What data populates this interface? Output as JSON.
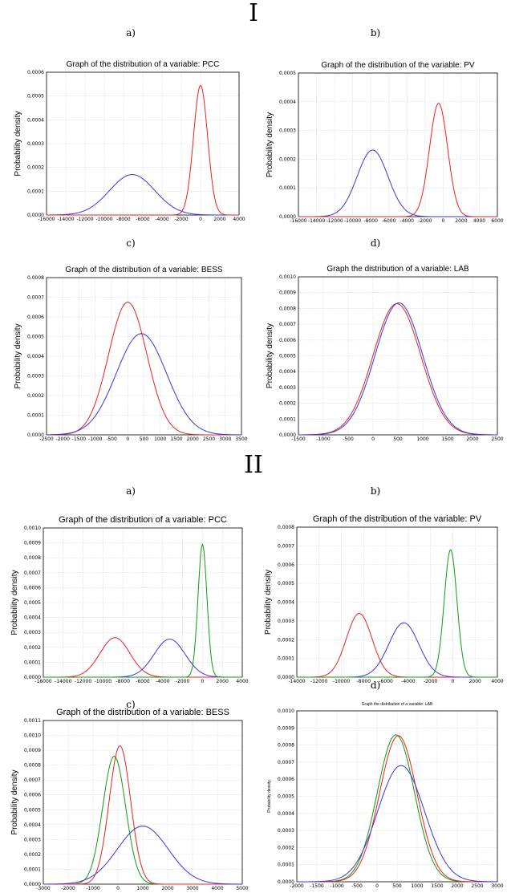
{
  "sections": [
    {
      "label": "I",
      "panels": [
        {
          "label": "a)"
        },
        {
          "label": "b)"
        },
        {
          "label": "c)"
        },
        {
          "label": "d)"
        }
      ]
    },
    {
      "label": "II",
      "panels": [
        {
          "label": "a)"
        },
        {
          "label": "b)"
        },
        {
          "label": "c)"
        },
        {
          "label": "d)"
        }
      ]
    }
  ],
  "colors": {
    "red": "#e8221e",
    "blue": "#3a35e0",
    "green": "#119911"
  },
  "chart_data": [
    {
      "type": "line",
      "title": "Graph of the distribution of a variable: PCC",
      "ylabel": "Probability density",
      "xlim": [
        -16000,
        4000
      ],
      "xticks": [
        -16000,
        -14000,
        -12000,
        -10000,
        -8000,
        -6000,
        -4000,
        -2000,
        0,
        2000,
        4000
      ],
      "xtick_labels": [
        "-16000",
        "-14000",
        "-12000",
        "-10000",
        "-8000",
        "-6000",
        "-4000",
        "-2000",
        "0",
        "2000",
        "4000"
      ],
      "ylim": [
        0,
        0.0006
      ],
      "yticks": [
        0,
        0.0001,
        0.0002,
        0.0003,
        0.0004,
        0.0005,
        0.0006
      ],
      "ytick_labels": [
        "0,0000",
        "0,0001",
        "0,0002",
        "0,0003",
        "0,0004",
        "0,0005",
        "0,0006"
      ],
      "series": [
        {
          "color": "blue",
          "mean": -7100,
          "peak": 0.00017,
          "sd": 2350
        },
        {
          "color": "red",
          "mean": 0,
          "peak": 0.000545,
          "sd": 730
        }
      ]
    },
    {
      "type": "line",
      "title": "Graph of the distribution of the variable: PV",
      "ylabel": "Probability density",
      "xlim": [
        -16000,
        6000
      ],
      "xticks": [
        -16000,
        -14000,
        -12000,
        -10000,
        -8000,
        -6000,
        -4000,
        -2000,
        0,
        2000,
        4000,
        6000
      ],
      "xtick_labels": [
        "-16000",
        "-14000",
        "-12000",
        "-10000",
        "-8000",
        "-6000",
        "-4000",
        "-2000",
        "0",
        "2000",
        "4000",
        "6000"
      ],
      "ylim": [
        0,
        0.0005
      ],
      "yticks": [
        0,
        0.0001,
        0.0002,
        0.0003,
        0.0004,
        0.0005
      ],
      "ytick_labels": [
        "0,0000",
        "0,0001",
        "0,0002",
        "0,0003",
        "0,0004",
        "0,0005"
      ],
      "series": [
        {
          "color": "blue",
          "mean": -7800,
          "peak": 0.000232,
          "sd": 1700
        },
        {
          "color": "red",
          "mean": -500,
          "peak": 0.000395,
          "sd": 1000
        }
      ]
    },
    {
      "type": "line",
      "title": "Graph of the distribution of a variable: BESS",
      "ylabel": "Probability density",
      "xlim": [
        -2500,
        3500
      ],
      "xticks": [
        -2500,
        -2000,
        -1500,
        -1000,
        -500,
        0,
        500,
        1000,
        1500,
        2000,
        2500,
        3000,
        3500
      ],
      "xtick_labels": [
        "-2500",
        "-2000",
        "-1500",
        "-1000",
        "-500",
        "0",
        "500",
        "1000",
        "1500",
        "2000",
        "2500",
        "3000",
        "3500"
      ],
      "ylim": [
        0,
        0.0008
      ],
      "yticks": [
        0,
        0.0001,
        0.0002,
        0.0003,
        0.0004,
        0.0005,
        0.0006,
        0.0007,
        0.0008
      ],
      "ytick_labels": [
        "0,0000",
        "0,0001",
        "0,0002",
        "0,0003",
        "0,0004",
        "0,0005",
        "0,0006",
        "0,0007",
        "0,0008"
      ],
      "series": [
        {
          "color": "red",
          "mean": 0,
          "peak": 0.000675,
          "sd": 590
        },
        {
          "color": "blue",
          "mean": 420,
          "peak": 0.000515,
          "sd": 775
        }
      ]
    },
    {
      "type": "line",
      "title": "Graph the distribution of a variable: LAB",
      "ylabel": "Probability density",
      "xlim": [
        -1500,
        2500
      ],
      "xticks": [
        -1500,
        -1000,
        -500,
        0,
        500,
        1000,
        1500,
        2000,
        2500
      ],
      "xtick_labels": [
        "-1500",
        "-1000",
        "-500",
        "0",
        "500",
        "1000",
        "1500",
        "2000",
        "2500"
      ],
      "ylim": [
        0,
        0.001
      ],
      "yticks": [
        0,
        0.0001,
        0.0002,
        0.0003,
        0.0004,
        0.0005,
        0.0006,
        0.0007,
        0.0008,
        0.0009,
        0.001
      ],
      "ytick_labels": [
        "0,0000",
        "0,0001",
        "0,0002",
        "0,0003",
        "0,0004",
        "0,0005",
        "0,0006",
        "0,0007",
        "0,0008",
        "0,0009",
        "0,0010"
      ],
      "series": [
        {
          "color": "red",
          "mean": 480,
          "peak": 0.00083,
          "sd": 480
        },
        {
          "color": "blue",
          "mean": 520,
          "peak": 0.000835,
          "sd": 478
        }
      ]
    },
    {
      "type": "line",
      "title": "Graph of the distribution of a variable: PCC",
      "ylabel": "Probability density",
      "xlim": [
        -16000,
        4000
      ],
      "xticks": [
        -16000,
        -14000,
        -12000,
        -10000,
        -8000,
        -6000,
        -4000,
        -2000,
        0,
        2000,
        4000
      ],
      "xtick_labels": [
        "-16000",
        "-14000",
        "-12000",
        "-10000",
        "-8000",
        "-6000",
        "-4000",
        "-2000",
        "0",
        "2000",
        "4000"
      ],
      "ylim": [
        0,
        0.001
      ],
      "yticks": [
        0,
        0.0001,
        0.0002,
        0.0003,
        0.0004,
        0.0005,
        0.0006,
        0.0007,
        0.0008,
        0.0009,
        0.001
      ],
      "ytick_labels": [
        "0,0000",
        "0,0001",
        "0,0002",
        "0,0003",
        "0,0004",
        "0,0005",
        "0,0006",
        "0,0007",
        "0,0008",
        "0,0009",
        "0,0010"
      ],
      "series": [
        {
          "color": "red",
          "mean": -8800,
          "peak": 0.000265,
          "sd": 1500
        },
        {
          "color": "blue",
          "mean": -3300,
          "peak": 0.000255,
          "sd": 1550
        },
        {
          "color": "green",
          "mean": 0,
          "peak": 0.00089,
          "sd": 450
        }
      ]
    },
    {
      "type": "line",
      "title": "Graph of the distribution of the variable: PV",
      "ylabel": "Probability density",
      "xlim": [
        -14000,
        4000
      ],
      "xticks": [
        -14000,
        -12000,
        -10000,
        -8000,
        -6000,
        -4000,
        -2000,
        0,
        2000,
        4000
      ],
      "xtick_labels": [
        "-14000",
        "-12000",
        "-10000",
        "-8000",
        "-6000",
        "-4000",
        "-2000",
        "0",
        "2000",
        "4000"
      ],
      "ylim": [
        0,
        0.0008
      ],
      "yticks": [
        0,
        0.0001,
        0.0002,
        0.0003,
        0.0004,
        0.0005,
        0.0006,
        0.0007,
        0.0008
      ],
      "ytick_labels": [
        "0,0000",
        "0,0001",
        "0,0002",
        "0,0003",
        "0,0004",
        "0,0005",
        "0,0006",
        "0,0007",
        "0,0008"
      ],
      "series": [
        {
          "color": "red",
          "mean": -8400,
          "peak": 0.00034,
          "sd": 1150
        },
        {
          "color": "blue",
          "mean": -4400,
          "peak": 0.00029,
          "sd": 1350
        },
        {
          "color": "green",
          "mean": -200,
          "peak": 0.00068,
          "sd": 570
        }
      ]
    },
    {
      "type": "line",
      "title": "Graph of the distribution of a variable: BESS",
      "ylabel": "Probability density",
      "xlim": [
        -3000,
        5000
      ],
      "xticks": [
        -3000,
        -2000,
        -1000,
        0,
        1000,
        2000,
        3000,
        4000,
        5000
      ],
      "xtick_labels": [
        "-3000",
        "-2000",
        "-1000",
        "0",
        "1000",
        "2000",
        "3000",
        "4000",
        "5000"
      ],
      "ylim": [
        0,
        0.0011
      ],
      "yticks": [
        0,
        0.0001,
        0.0002,
        0.0003,
        0.0004,
        0.0005,
        0.0006,
        0.0007,
        0.0008,
        0.0009,
        0.001,
        0.0011
      ],
      "ytick_labels": [
        "0,0000",
        "0,0001",
        "0,0002",
        "0,0003",
        "0,0004",
        "0,0005",
        "0,0006",
        "0,0007",
        "0,0008",
        "0,0009",
        "0,0010",
        "0,0011"
      ],
      "series": [
        {
          "color": "green",
          "mean": -150,
          "peak": 0.00086,
          "sd": 460
        },
        {
          "color": "red",
          "mean": 80,
          "peak": 0.00093,
          "sd": 430
        },
        {
          "color": "blue",
          "mean": 1000,
          "peak": 0.00039,
          "sd": 1020
        }
      ]
    },
    {
      "type": "line",
      "title": "Graph the distribution of a variable: LAB",
      "ylabel": "Probability density",
      "xlim": [
        -2000,
        3000
      ],
      "xticks": [
        -2000,
        -1500,
        -1000,
        -500,
        0,
        500,
        1000,
        1500,
        2000,
        2500,
        3000
      ],
      "xtick_labels": [
        "-2000",
        "-1500",
        "-1000",
        "-500",
        "0",
        "500",
        "1000",
        "1500",
        "2000",
        "2500",
        "3000"
      ],
      "ylim": [
        0,
        0.001
      ],
      "yticks": [
        0,
        0.0001,
        0.0002,
        0.0003,
        0.0004,
        0.0005,
        0.0006,
        0.0007,
        0.0008,
        0.0009,
        0.001
      ],
      "ytick_labels": [
        "0,0000",
        "0,0001",
        "0,0002",
        "0,0003",
        "0,0004",
        "0,0005",
        "0,0006",
        "0,0007",
        "0,0008",
        "0,0009",
        "0,0010"
      ],
      "series": [
        {
          "color": "green",
          "mean": 470,
          "peak": 0.00086,
          "sd": 465
        },
        {
          "color": "red",
          "mean": 530,
          "peak": 0.000855,
          "sd": 468
        },
        {
          "color": "blue",
          "mean": 600,
          "peak": 0.00068,
          "sd": 585
        }
      ]
    }
  ]
}
